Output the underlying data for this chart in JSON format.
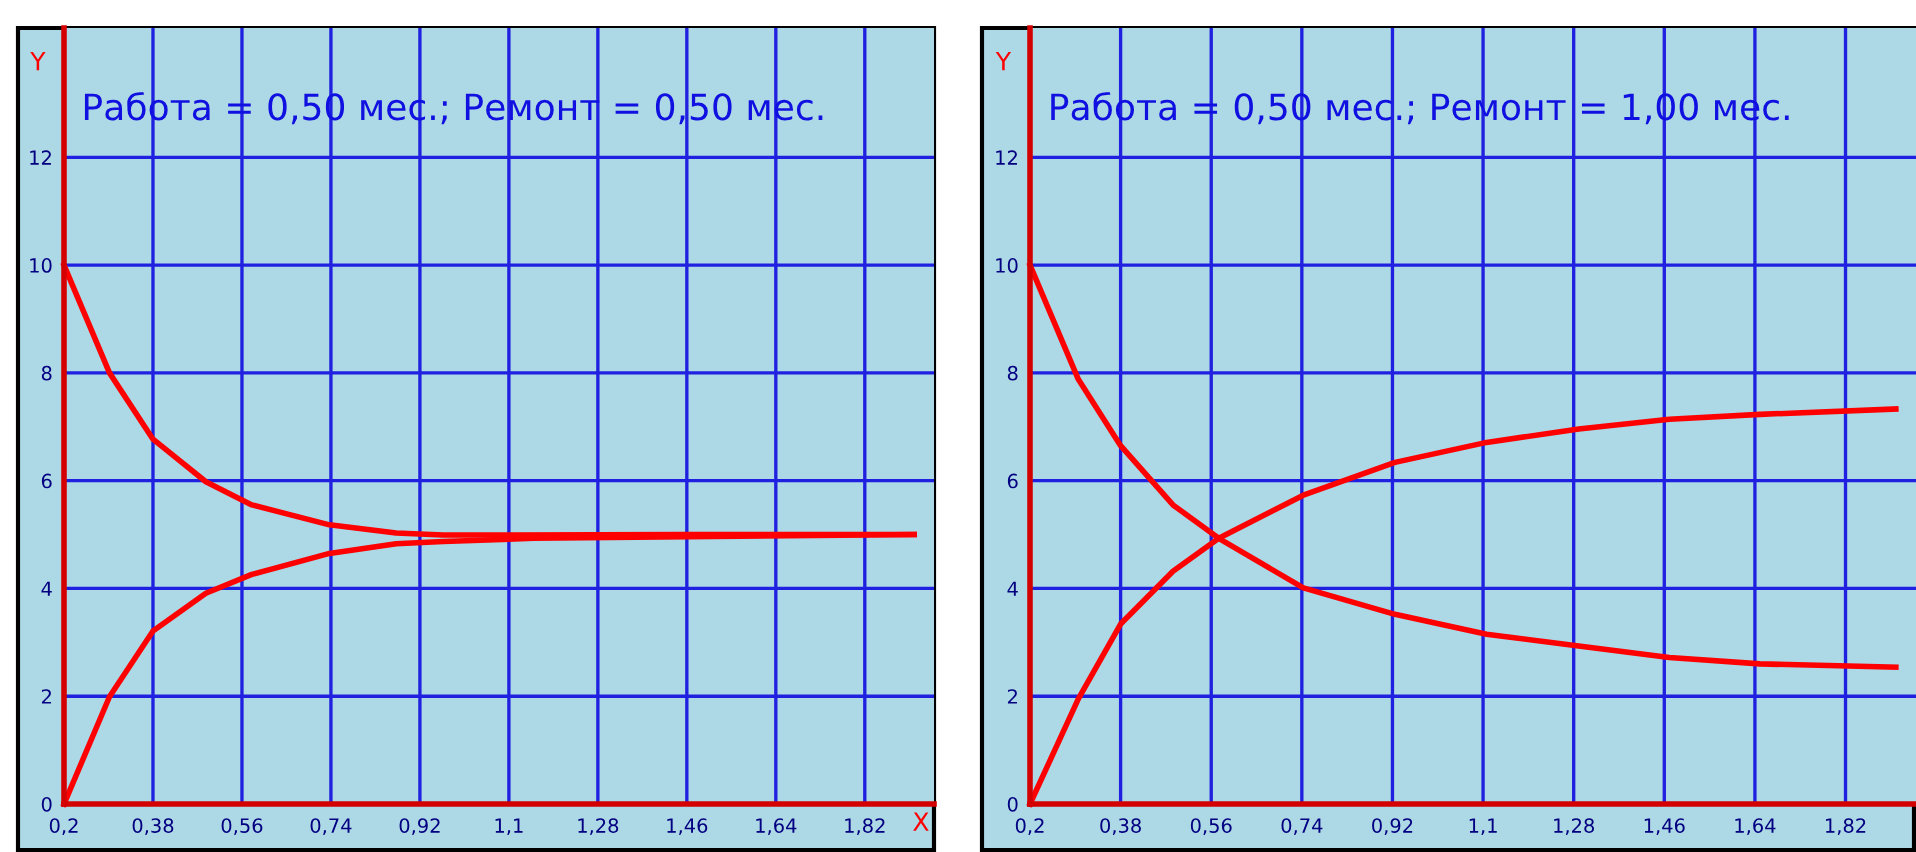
{
  "chart_data": [
    {
      "type": "line",
      "title": "Работа = 0,50 мес.; Ремонт = 0,50 мес.",
      "xlabel": "X",
      "ylabel": "Y",
      "series": [
        {
          "color": "#ff0000",
          "x": [
            0.2,
            0.292,
            0.38,
            0.487,
            0.58,
            0.737,
            0.872,
            0.967,
            1.46,
            1.92
          ],
          "values": [
            10,
            8.0,
            6.77,
            5.98,
            5.55,
            5.18,
            5.03,
            4.99,
            5.0,
            5.0
          ]
        },
        {
          "color": "#ff0000",
          "x": [
            0.2,
            0.292,
            0.38,
            0.487,
            0.58,
            0.737,
            0.872,
            0.967,
            1.15,
            1.92
          ],
          "values": [
            0,
            1.99,
            3.21,
            3.91,
            4.26,
            4.65,
            4.83,
            4.87,
            4.93,
            5.0
          ]
        }
      ],
      "xlim": [
        0.2,
        1.96
      ],
      "ylim": [
        0,
        14.4
      ],
      "xticks": [
        {
          "value": 0.2,
          "label": "0,2"
        },
        {
          "value": 0.38,
          "label": "0,38"
        },
        {
          "value": 0.56,
          "label": "0,56"
        },
        {
          "value": 0.74,
          "label": "0,74"
        },
        {
          "value": 0.92,
          "label": "0,92"
        },
        {
          "value": 1.1,
          "label": "1,1"
        },
        {
          "value": 1.28,
          "label": "1,28"
        },
        {
          "value": 1.46,
          "label": "1,46"
        },
        {
          "value": 1.64,
          "label": "1,64"
        },
        {
          "value": 1.82,
          "label": "1,82"
        }
      ],
      "yticks": [
        0,
        2,
        4,
        6,
        8,
        10,
        12
      ],
      "grid": true,
      "marker": "none",
      "line_style": "solid",
      "legend": false
    },
    {
      "type": "line",
      "title": "Работа = 0,50 мес.; Ремонт = 1,00 мес.",
      "ylabel": "Y",
      "series": [
        {
          "color": "#ff0000",
          "x": [
            0.2,
            0.296,
            0.38,
            0.484,
            0.575,
            0.743,
            0.925,
            1.107,
            1.29,
            1.47,
            1.65,
            1.92
          ],
          "values": [
            10,
            7.88,
            6.65,
            5.55,
            4.93,
            4.01,
            3.52,
            3.15,
            2.93,
            2.72,
            2.6,
            2.54
          ]
        },
        {
          "color": "#ff0000",
          "x": [
            0.2,
            0.296,
            0.38,
            0.484,
            0.575,
            0.743,
            0.925,
            1.107,
            1.29,
            1.47,
            1.65,
            1.92
          ],
          "values": [
            0,
            1.95,
            3.34,
            4.32,
            4.93,
            5.73,
            6.34,
            6.71,
            6.96,
            7.14,
            7.23,
            7.33
          ]
        }
      ],
      "xlim": [
        0.2,
        1.96
      ],
      "ylim": [
        0,
        14.4
      ],
      "xticks": [
        {
          "value": 0.2,
          "label": "0,2"
        },
        {
          "value": 0.38,
          "label": "0,38"
        },
        {
          "value": 0.56,
          "label": "0,56"
        },
        {
          "value": 0.74,
          "label": "0,74"
        },
        {
          "value": 0.92,
          "label": "0,92"
        },
        {
          "value": 1.1,
          "label": "1,1"
        },
        {
          "value": 1.28,
          "label": "1,28"
        },
        {
          "value": 1.46,
          "label": "1,46"
        },
        {
          "value": 1.64,
          "label": "1,64"
        },
        {
          "value": 1.82,
          "label": "1,82"
        }
      ],
      "yticks": [
        0,
        2,
        4,
        6,
        8,
        10,
        12
      ],
      "grid": true,
      "marker": "none",
      "line_style": "solid",
      "legend": false
    }
  ]
}
